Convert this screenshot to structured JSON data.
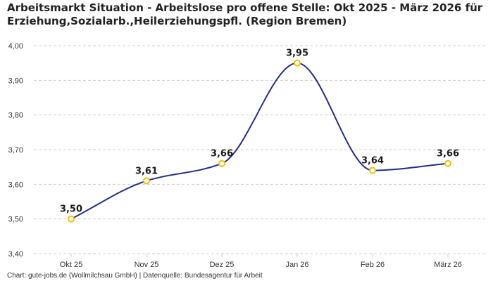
{
  "chart_data": {
    "type": "line",
    "title_lines": [
      "Arbeitsmarkt Situation - Arbeitslose pro offene Stelle: Okt 2025 - März 2026 für",
      "Erziehung,Sozialarb.,Heilerziehungspfl. (Region Bremen)"
    ],
    "categories": [
      "Okt 25",
      "Nov 25",
      "Dez 25",
      "Jan 26",
      "Feb 26",
      "März 26"
    ],
    "values": [
      3.5,
      3.61,
      3.66,
      3.95,
      3.64,
      3.66
    ],
    "data_labels": [
      "3,50",
      "3,61",
      "3,66",
      "3,95",
      "3,64",
      "3,66"
    ],
    "ylim": [
      3.4,
      4.0
    ],
    "yticks": [
      3.4,
      3.5,
      3.6,
      3.7,
      3.8,
      3.9,
      4.0
    ],
    "ytick_labels": [
      "3,40",
      "3,50",
      "3,60",
      "3,70",
      "3,80",
      "3,90",
      "4,00"
    ],
    "xlabel": "",
    "ylabel": "",
    "grid": true,
    "line_color": "#1f2d86",
    "marker_color": "#f2c200",
    "grid_color": "#cccccc"
  },
  "footer": {
    "source": "Chart: gute-jobs.de (Wollmilchsau GmbH) | Datenquelle: Bundesagentur für Arbeit"
  }
}
